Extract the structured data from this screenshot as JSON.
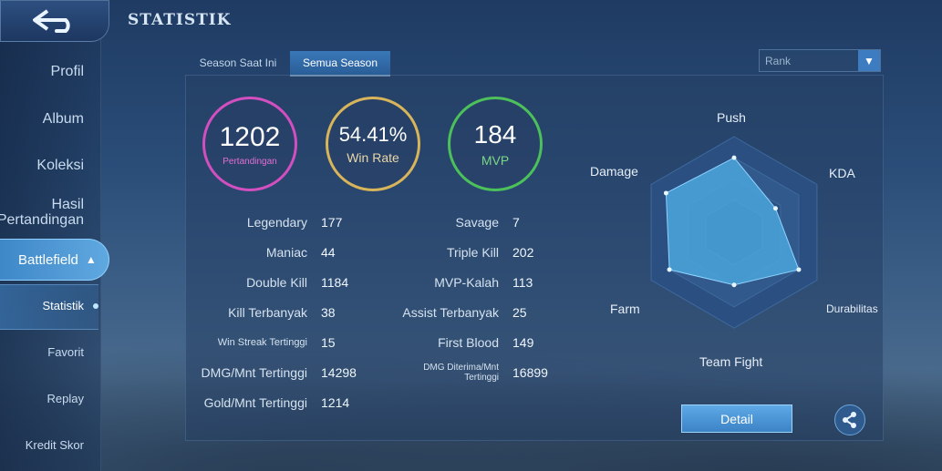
{
  "header": {
    "title": "STATISTIK"
  },
  "sidebar": {
    "items": [
      {
        "label": "Profil"
      },
      {
        "label": "Album"
      },
      {
        "label": "Koleksi"
      },
      {
        "label": "Hasil Pertandingan"
      }
    ],
    "active_label": "Battlefield",
    "sub_items": [
      {
        "label": "Statistik"
      },
      {
        "label": "Favorit"
      },
      {
        "label": "Replay"
      },
      {
        "label": "Kredit Skor"
      }
    ]
  },
  "tabs": [
    {
      "label": "Season Saat Ini"
    },
    {
      "label": "Semua Season"
    }
  ],
  "rank_dropdown": {
    "value": "Rank"
  },
  "summary": {
    "matches": {
      "value": "1202",
      "label": "Pertandingan",
      "color": "#d24fc0"
    },
    "win_rate": {
      "value": "54.41%",
      "label": "Win Rate",
      "color": "#d8b45a"
    },
    "mvp": {
      "value": "184",
      "label": "MVP",
      "color": "#4cc05a"
    }
  },
  "stats_left": [
    {
      "label": "Legendary",
      "value": "177"
    },
    {
      "label": "Maniac",
      "value": "44"
    },
    {
      "label": "Double Kill",
      "value": "1184"
    },
    {
      "label": "Kill Terbanyak",
      "value": "38"
    },
    {
      "label": "Win Streak Tertinggi",
      "value": "15"
    },
    {
      "label": "DMG/Mnt Tertinggi",
      "value": "14298"
    },
    {
      "label": "Gold/Mnt Tertinggi",
      "value": "1214"
    }
  ],
  "stats_right": [
    {
      "label": "Savage",
      "value": "7"
    },
    {
      "label": "Triple Kill",
      "value": "202"
    },
    {
      "label": "MVP-Kalah",
      "value": "113"
    },
    {
      "label": "Assist Terbanyak",
      "value": "25"
    },
    {
      "label": "First Blood",
      "value": "149"
    },
    {
      "label": "DMG Diterima/Mnt Tertinggi",
      "value": "16899"
    }
  ],
  "radar": {
    "labels": [
      "Push",
      "KDA",
      "Durabilitas",
      "Team Fight",
      "Farm",
      "Damage"
    ],
    "levels": [
      0.78,
      0.5,
      0.78,
      0.55,
      0.78,
      0.82
    ],
    "fill_color": "#4aa6dc"
  },
  "buttons": {
    "detail": "Detail"
  }
}
